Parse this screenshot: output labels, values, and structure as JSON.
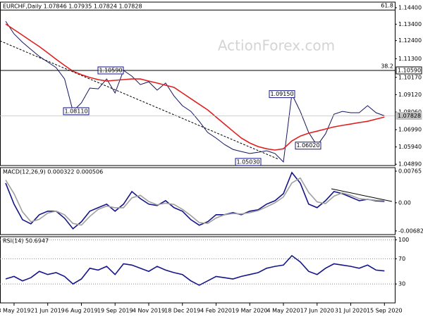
{
  "watermark": "ActionForex.com",
  "chart_data": [
    {
      "type": "line",
      "title": "EURCHF,Daily 1.07846 1.07935 1.07824 1.07828",
      "categories": [
        null,
        "8 May 2019",
        null,
        null,
        null,
        "21 Jun 2019",
        null,
        null,
        null,
        "6 Aug 2019",
        null,
        null,
        null,
        "19 Sep 2019",
        null,
        null,
        null,
        "4 Nov 2019",
        null,
        null,
        null,
        "18 Dec 2019",
        null,
        null,
        null,
        "4 Feb 2020",
        null,
        null,
        null,
        "19 Mar 2020",
        null,
        null,
        null,
        "4 May 2020",
        null,
        null,
        null,
        "17 Jun 2020",
        null,
        null,
        null,
        "31 Jul 2020",
        null,
        null,
        null,
        "15 Sep 2020"
      ],
      "series": [
        {
          "color": "#15155f",
          "values": [
            1.1358,
            1.1281,
            1.123,
            1.1187,
            1.1144,
            1.111,
            1.1076,
            1.1007,
            1.0811,
            1.0862,
            1.0952,
            1.0947,
            1.1007,
            1.0922,
            1.1059,
            1.1024,
            1.0973,
            1.099,
            1.0939,
            1.0982,
            1.0904,
            1.0845,
            1.081,
            1.075,
            1.0682,
            1.0648,
            1.0609,
            1.0579,
            1.0566,
            1.0554,
            1.0562,
            1.0571,
            1.0554,
            1.0503,
            1.0915,
            1.081,
            1.0682,
            1.0602,
            1.0673,
            1.0793,
            1.081,
            1.0802,
            1.0802,
            1.0845,
            1.0802,
            1.0783
          ]
        },
        {
          "color": "#e02020",
          "values": [
            1.1341,
            1.1307,
            1.1273,
            1.1238,
            1.1204,
            1.1166,
            1.1127,
            1.1089,
            1.1054,
            1.1033,
            1.1016,
            1.1003,
            1.0994,
            1.0999,
            1.1003,
            1.1007,
            1.1007,
            1.0994,
            1.0982,
            1.0969,
            1.0956,
            1.0922,
            1.0887,
            1.0853,
            1.0819,
            1.0776,
            1.0733,
            1.069,
            1.0648,
            1.0618,
            1.0596,
            1.0583,
            1.0575,
            1.0583,
            1.0631,
            1.066,
            1.0678,
            1.069,
            1.0703,
            1.0716,
            1.0725,
            1.0733,
            1.0742,
            1.075,
            1.0763,
            1.0776
          ]
        }
      ],
      "ylim": [
        1.0481,
        1.1474
      ],
      "yticks": [
        {
          "value": 1.144,
          "label": "1.14400"
        },
        {
          "value": 1.134,
          "label": "1.13400"
        },
        {
          "value": 1.124,
          "label": "1.12400"
        },
        {
          "value": 1.113,
          "label": "1.11300"
        },
        {
          "value": 1.1017,
          "label": "1.10170"
        },
        {
          "value": 1.0912,
          "label": "1.09120"
        },
        {
          "value": 1.0806,
          "label": "1.08060"
        },
        {
          "value": 1.0699,
          "label": "1.06990"
        },
        {
          "value": 1.0594,
          "label": "1.05940"
        },
        {
          "value": 1.0489,
          "label": "1.04890"
        }
      ],
      "grid": false,
      "fib_levels": [
        {
          "name": "61.8",
          "value": 1.1426
        },
        {
          "name": "38.2",
          "value": 1.1059
        }
      ],
      "price_tags": [
        {
          "value": 1.1059,
          "label": "1.10590",
          "color": "#000000"
        },
        {
          "value": 1.07828,
          "label": "1.07828",
          "color": "#c0c0c0"
        }
      ],
      "annotations": [
        {
          "value": 1.0811,
          "label": "1.08110"
        },
        {
          "value": 1.1059,
          "label": "1.10590"
        },
        {
          "value": 1.0915,
          "label": "1.09150"
        },
        {
          "value": 1.0602,
          "label": "1.06020"
        },
        {
          "value": 1.0503,
          "label": "1.05030"
        }
      ]
    },
    {
      "type": "line",
      "title": "MACD(12,26,9) 0.000322 0.000506",
      "series": [
        {
          "color": "#15158a",
          "values": [
            0.00476,
            -0.00034,
            -0.00408,
            -0.0051,
            -0.00289,
            -0.00204,
            -0.00204,
            -0.00374,
            -0.00629,
            -0.00459,
            -0.00204,
            -0.00119,
            -0.00034,
            -0.00204,
            -0.00034,
            0.00272,
            0.00102,
            -0.00034,
            -0.00068,
            0.00051,
            -0.00119,
            -0.00204,
            -0.00408,
            -0.00544,
            -0.00459,
            -0.00289,
            -0.00289,
            -0.00238,
            -0.00289,
            -0.00204,
            -0.0017,
            -0.00034,
            0.00051,
            0.00221,
            0.00731,
            0.00476,
            -0.00034,
            -0.00119,
            0.00051,
            0.00272,
            0.00221,
            0.00136,
            0.00051,
            0.00085,
            0.00045,
            0.00032
          ]
        },
        {
          "color": "#a0a0a0",
          "values": [
            0.0055,
            0.0022,
            -0.0022,
            -0.0046,
            -0.004,
            -0.0025,
            -0.002,
            -0.0029,
            -0.005,
            -0.0054,
            -0.0033,
            -0.0016,
            -0.0008,
            -0.0012,
            -0.0012,
            0.0012,
            0.0018,
            0.0003,
            -0.0005,
            -0.0001,
            -0.0004,
            -0.0016,
            -0.0031,
            -0.0048,
            -0.005,
            -0.0037,
            -0.0029,
            -0.0026,
            -0.0027,
            -0.0024,
            -0.0019,
            -0.001,
            0.0,
            0.0014,
            0.0048,
            0.006,
            0.0025,
            0.0002,
            -0.0002,
            0.0016,
            0.0024,
            0.0018,
            0.001,
            0.0008,
            0.0006,
            0.00051
          ]
        }
      ],
      "ylim": [
        -0.0077,
        0.0085
      ],
      "yticks": [
        0.00765,
        {
          "value": 0,
          "label": "0.00"
        },
        -0.00682
      ],
      "grid": false
    },
    {
      "type": "line",
      "title": "RSI(14) 50.6947",
      "series": [
        {
          "color": "#15158a",
          "values": [
            38,
            42,
            35,
            40,
            50,
            45,
            48,
            42,
            30,
            38,
            55,
            52,
            58,
            45,
            62,
            60,
            55,
            50,
            58,
            52,
            48,
            45,
            35,
            28,
            35,
            42,
            40,
            38,
            42,
            45,
            48,
            55,
            58,
            60,
            75,
            65,
            50,
            45,
            55,
            62,
            60,
            58,
            55,
            60,
            52,
            50.69
          ]
        }
      ],
      "ylim": [
        0,
        105
      ],
      "yticks": [
        100,
        70,
        30
      ],
      "grid": true
    }
  ]
}
